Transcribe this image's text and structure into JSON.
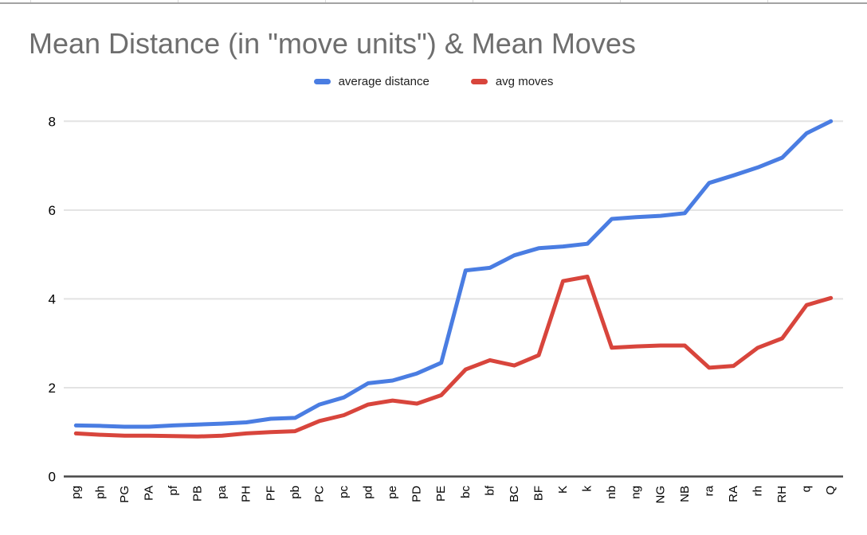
{
  "sheet": {
    "description": "sliver of spreadsheet cells visible above the floating chart"
  },
  "chart": {
    "title": "Mean Distance (in \"move units\") & Mean Moves"
  },
  "chart_data": {
    "type": "line",
    "title": "Mean Distance (in \"move units\") & Mean Moves",
    "categories": [
      "pg",
      "ph",
      "PG",
      "PA",
      "pf",
      "PB",
      "pa",
      "PH",
      "PF",
      "pb",
      "PC",
      "pc",
      "pd",
      "pe",
      "PD",
      "PE",
      "bc",
      "bf",
      "BC",
      "BF",
      "K",
      "k",
      "nb",
      "ng",
      "NG",
      "NB",
      "ra",
      "RA",
      "rh",
      "RH",
      "q",
      "Q"
    ],
    "series": [
      {
        "name": "average distance",
        "color": "#4a7de2",
        "values": [
          1.15,
          1.14,
          1.12,
          1.12,
          1.15,
          1.17,
          1.19,
          1.22,
          1.3,
          1.32,
          1.62,
          1.78,
          2.1,
          2.16,
          2.32,
          2.56,
          4.64,
          4.7,
          4.98,
          5.14,
          5.18,
          5.24,
          5.8,
          5.84,
          5.87,
          5.93,
          6.61,
          6.78,
          6.96,
          7.18,
          7.73,
          8.0
        ]
      },
      {
        "name": "avg moves",
        "color": "#d8453c",
        "values": [
          0.97,
          0.94,
          0.92,
          0.92,
          0.91,
          0.9,
          0.92,
          0.97,
          1.0,
          1.02,
          1.25,
          1.38,
          1.62,
          1.71,
          1.64,
          1.83,
          2.41,
          2.62,
          2.5,
          2.73,
          4.4,
          4.5,
          2.9,
          2.93,
          2.95,
          2.95,
          2.45,
          2.49,
          2.9,
          3.11,
          3.86,
          4.02
        ]
      }
    ],
    "xlabel": "",
    "ylabel": "",
    "ylim": [
      0,
      8
    ],
    "yticks": [
      0,
      2,
      4,
      6,
      8
    ],
    "ytick_labels": [
      "0",
      "2",
      "4",
      "6",
      "8"
    ],
    "grid": "horizontal-only",
    "legend_position": "top-center",
    "x_label_rotation_deg": -90
  },
  "colors": {
    "background": "#ffffff",
    "title_text": "#6e6e6e",
    "axis_text": "#000000",
    "legend_text": "#212121",
    "gridline": "#e3e3e3",
    "zero_line": "#474747",
    "sheet_border": "#a3a3a3",
    "cell_border": "#d9d9d9",
    "series_blue": "#4a7de2",
    "series_red": "#d8453c"
  }
}
